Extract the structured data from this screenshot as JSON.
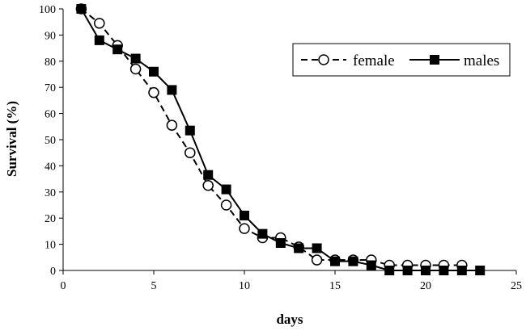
{
  "chart_data": {
    "type": "line",
    "xlabel": "days",
    "ylabel": "Survival (%)",
    "xlim": [
      0,
      25
    ],
    "ylim": [
      0,
      100
    ],
    "x_ticks": [
      0,
      5,
      10,
      15,
      20,
      25
    ],
    "y_ticks": [
      0,
      10,
      20,
      30,
      40,
      50,
      60,
      70,
      80,
      90,
      100
    ],
    "grid": false,
    "legend_position": "top-right",
    "series": [
      {
        "name": "female",
        "line_style": "dashed",
        "marker": "open-circle",
        "x": [
          1,
          2,
          3,
          4,
          5,
          6,
          7,
          8,
          9,
          10,
          11,
          12,
          13,
          14,
          15,
          16,
          17,
          18,
          19,
          20,
          21,
          22
        ],
        "y": [
          100,
          94.5,
          86,
          77,
          68,
          55.5,
          45,
          32.5,
          25,
          16,
          12.5,
          12.5,
          9,
          4,
          4,
          4,
          4,
          2,
          2,
          2,
          2,
          2
        ]
      },
      {
        "name": "males",
        "line_style": "solid",
        "marker": "filled-square",
        "x": [
          1,
          2,
          3,
          4,
          5,
          6,
          7,
          8,
          9,
          10,
          11,
          12,
          13,
          14,
          15,
          16,
          17,
          18,
          19,
          20,
          21,
          22,
          23
        ],
        "y": [
          100,
          88,
          84.5,
          81,
          76,
          69,
          53.5,
          36.5,
          31,
          21,
          14,
          10.5,
          8.5,
          8.5,
          3.5,
          3.5,
          2,
          0,
          0,
          0,
          0,
          0,
          0
        ]
      }
    ]
  }
}
